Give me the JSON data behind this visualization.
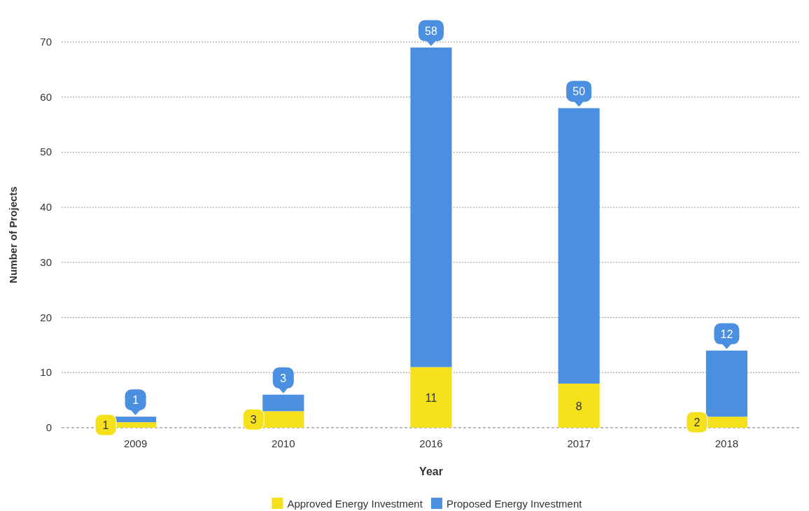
{
  "chart_data": {
    "type": "bar",
    "stacked": true,
    "xlabel": "Year",
    "ylabel": "Number of Projects",
    "categories": [
      "2009",
      "2010",
      "2016",
      "2017",
      "2018"
    ],
    "series": [
      {
        "name": "Approved Energy Investment",
        "color": "#f5e11b",
        "values": [
          1,
          3,
          11,
          8,
          2
        ]
      },
      {
        "name": "Proposed Energy Investment",
        "color": "#4a8fe0",
        "values": [
          1,
          3,
          58,
          50,
          12
        ]
      }
    ],
    "ylim": [
      0,
      70
    ],
    "yticks": [
      0,
      10,
      20,
      30,
      40,
      50,
      60,
      70
    ],
    "grid": "y",
    "legend": "bottom",
    "data_labels": true
  }
}
